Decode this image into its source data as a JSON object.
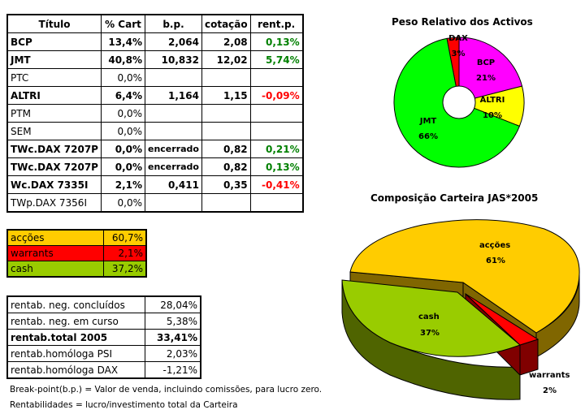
{
  "holdings_table": {
    "headers": [
      "Título",
      "% Cart",
      "b.p.",
      "cotação",
      "rent.p."
    ],
    "rows": [
      {
        "titulo": "BCP",
        "cart": "13,4%",
        "bp": "2,064",
        "cotacao": "2,08",
        "rent": "0,13%",
        "rent_sign": "pos",
        "bold": true
      },
      {
        "titulo": "JMT",
        "cart": "40,8%",
        "bp": "10,832",
        "cotacao": "12,02",
        "rent": "5,74%",
        "rent_sign": "pos",
        "bold": true
      },
      {
        "titulo": "PTC",
        "cart": "0,0%",
        "bp": "",
        "cotacao": "",
        "rent": "",
        "rent_sign": "",
        "bold": false
      },
      {
        "titulo": "ALTRI",
        "cart": "6,4%",
        "bp": "1,164",
        "cotacao": "1,15",
        "rent": "-0,09%",
        "rent_sign": "neg",
        "bold": true
      },
      {
        "titulo": "PTM",
        "cart": "0,0%",
        "bp": "",
        "cotacao": "",
        "rent": "",
        "rent_sign": "",
        "bold": false
      },
      {
        "titulo": "SEM",
        "cart": "0,0%",
        "bp": "",
        "cotacao": "",
        "rent": "",
        "rent_sign": "",
        "bold": false
      },
      {
        "titulo": "TWc.DAX 7207P",
        "cart": "0,0%",
        "bp": "encerrado",
        "cotacao": "0,82",
        "rent": "0,21%",
        "rent_sign": "pos",
        "bold": true
      },
      {
        "titulo": "TWc.DAX 7207P",
        "cart": "0,0%",
        "bp": "encerrado",
        "cotacao": "0,82",
        "rent": "0,13%",
        "rent_sign": "pos",
        "bold": true
      },
      {
        "titulo": "Wc.DAX 7335I",
        "cart": "2,1%",
        "bp": "0,411",
        "cotacao": "0,35",
        "rent": "-0,41%",
        "rent_sign": "neg",
        "bold": true
      },
      {
        "titulo": "TWp.DAX 7356I",
        "cart": "0,0%",
        "bp": "",
        "cotacao": "",
        "rent": "",
        "rent_sign": "",
        "bold": false
      }
    ]
  },
  "composition_table": [
    {
      "label": "acções",
      "value": "60,7%",
      "color": "#ffcc00"
    },
    {
      "label": "warrants",
      "value": "2,1%",
      "color": "#ff0000"
    },
    {
      "label": "cash",
      "value": "37,2%",
      "color": "#99cc00"
    }
  ],
  "returns_table": [
    {
      "label": "rentab. neg. concluídos",
      "value": "28,04%",
      "bold": false
    },
    {
      "label": "rentab. neg. em curso",
      "value": "5,38%",
      "bold": false
    },
    {
      "label": "rentab.total 2005",
      "value": "33,41%",
      "bold": true
    },
    {
      "label": "rentab.homóloga PSI",
      "value": "2,03%",
      "bold": false
    },
    {
      "label": "rentab.homóloga DAX",
      "value": "-1,21%",
      "bold": false
    }
  ],
  "notes": {
    "breakpoint": "Break-point(b.p.) = Valor de venda, incluindo comissões, para lucro zero.",
    "rentabilidades": "Rentabilidades = lucro/investimento total da Carteira"
  },
  "colors": {
    "positive": "#008000",
    "negative": "#ff0000"
  },
  "chart_data": [
    {
      "type": "pie",
      "variant": "donut",
      "title": "Peso Relativo dos Activos",
      "categories": [
        "DAX",
        "BCP",
        "ALTRI",
        "JMT"
      ],
      "values": [
        3,
        21,
        10,
        66
      ],
      "labels": [
        "3%",
        "21%",
        "10%",
        "66%"
      ],
      "colors": [
        "#ff0000",
        "#ff00ff",
        "#ffff00",
        "#00ff00"
      ]
    },
    {
      "type": "pie",
      "variant": "3d-exploded",
      "title": "Composição Carteira JAS*2005",
      "categories": [
        "acções",
        "warrants",
        "cash"
      ],
      "values": [
        61,
        2,
        37
      ],
      "labels": [
        "61%",
        "2%",
        "37%"
      ],
      "colors": [
        "#ffcc00",
        "#ff0000",
        "#99cc00"
      ]
    }
  ]
}
